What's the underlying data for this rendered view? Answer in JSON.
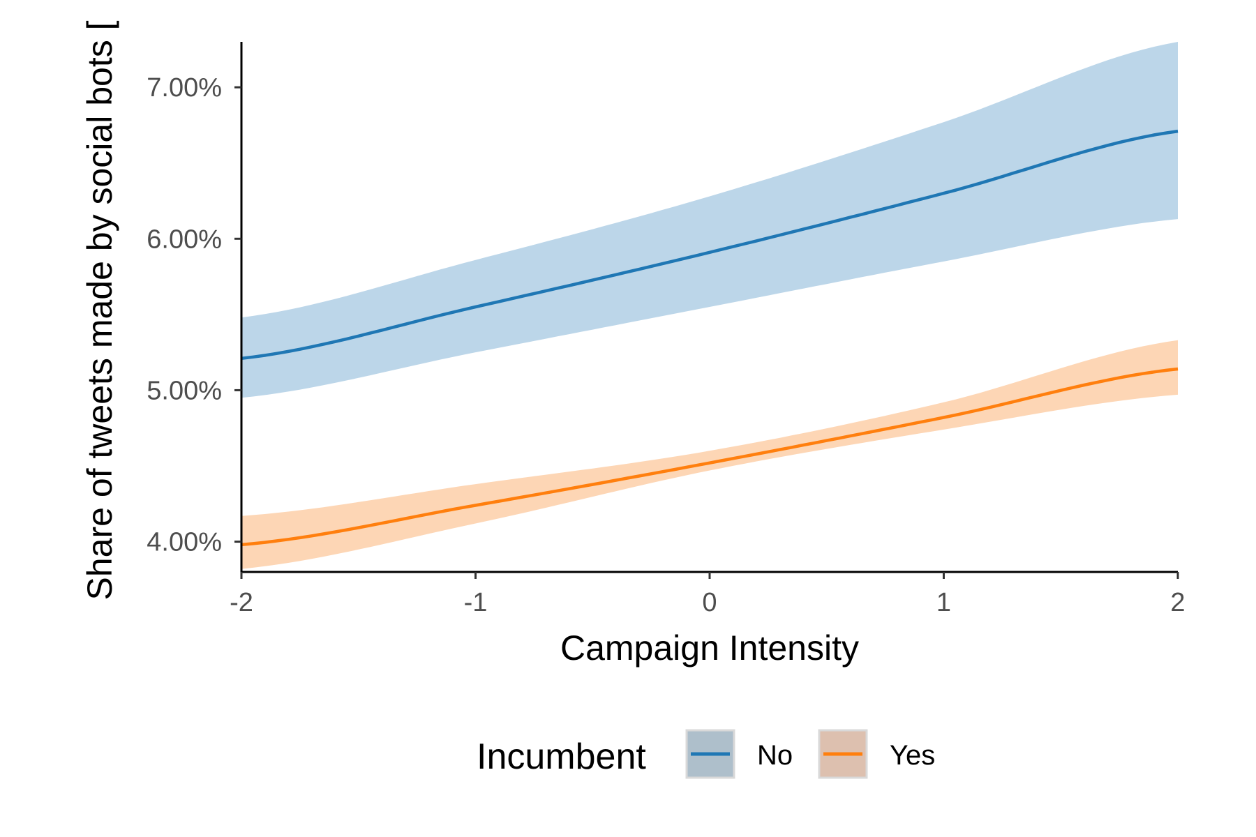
{
  "chart_data": {
    "type": "line",
    "xlabel": "Campaign Intensity",
    "ylabel": "Share of tweets made by social bots [",
    "xlim": [
      -2,
      2
    ],
    "ylim": [
      3.8,
      7.3
    ],
    "x_ticks": [
      -2,
      -1,
      0,
      1,
      2
    ],
    "x_tick_labels": [
      "-2",
      "-1",
      "0",
      "1",
      "2"
    ],
    "y_ticks": [
      4,
      5,
      6,
      7
    ],
    "y_tick_labels": [
      "4.00%",
      "5.00%",
      "6.00%",
      "7.00%"
    ],
    "grid": false,
    "legend": {
      "title": "Incumbent",
      "position": "bottom"
    },
    "series": [
      {
        "name": "No",
        "color": "#1f77b4",
        "band_color": "#bcd6e9",
        "key_fill": "#aebfcb",
        "x": [
          -2,
          -1,
          0,
          1,
          2
        ],
        "y": [
          5.21,
          5.55,
          5.91,
          6.3,
          6.71
        ],
        "lower": [
          4.95,
          5.25,
          5.55,
          5.85,
          6.13
        ],
        "upper": [
          5.48,
          5.86,
          6.28,
          6.77,
          7.3
        ]
      },
      {
        "name": "Yes",
        "color": "#ff7f0e",
        "band_color": "#fdd6b5",
        "key_fill": "#ddc0af",
        "x": [
          -2,
          -1,
          0,
          1,
          2
        ],
        "y": [
          3.98,
          4.24,
          4.52,
          4.82,
          5.14
        ],
        "lower": [
          3.82,
          4.12,
          4.47,
          4.74,
          4.97
        ],
        "upper": [
          4.17,
          4.38,
          4.6,
          4.92,
          5.33
        ]
      }
    ]
  }
}
